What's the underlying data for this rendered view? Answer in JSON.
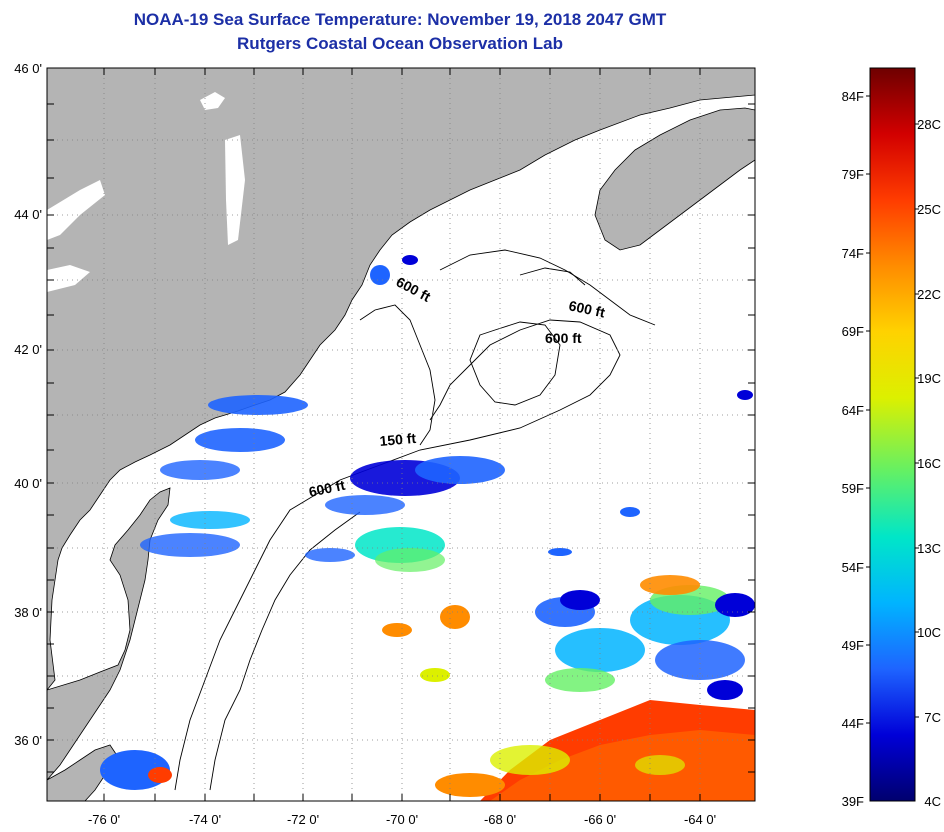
{
  "header": {
    "title": "NOAA-19 Sea Surface Temperature:  November 19, 2018 2047 GMT",
    "subtitle": "Rutgers Coastal Ocean Observation Lab"
  },
  "map": {
    "lat_labels": [
      "46 0'",
      "44 0'",
      "42 0'",
      "40 0'",
      "38 0'",
      "36 0'"
    ],
    "lon_labels": [
      "-76 0'",
      "-74 0'",
      "-72 0'",
      "-70 0'",
      "-68 0'",
      "-66 0'",
      "-64 0'"
    ],
    "contour_labels": [
      "600 ft",
      "600 ft",
      "600 ft",
      "150 ft",
      "600 ft"
    ],
    "colors": {
      "land": "#b4b4b4",
      "ocean": "#ffffff",
      "coastline": "#000000"
    }
  },
  "colorbar": {
    "f_labels": [
      "84F",
      "79F",
      "74F",
      "69F",
      "64F",
      "59F",
      "54F",
      "49F",
      "44F",
      "39F"
    ],
    "c_labels": [
      "28C",
      "25C",
      "22C",
      "19C",
      "16C",
      "13C",
      "10C",
      "7C",
      "4C"
    ],
    "gradient": [
      "#00006e",
      "#0000d8",
      "#1e64ff",
      "#00b4ff",
      "#00e6c8",
      "#64f064",
      "#dcf000",
      "#ffd200",
      "#ff8c00",
      "#ff3c00",
      "#d20000",
      "#6e0000"
    ]
  }
}
